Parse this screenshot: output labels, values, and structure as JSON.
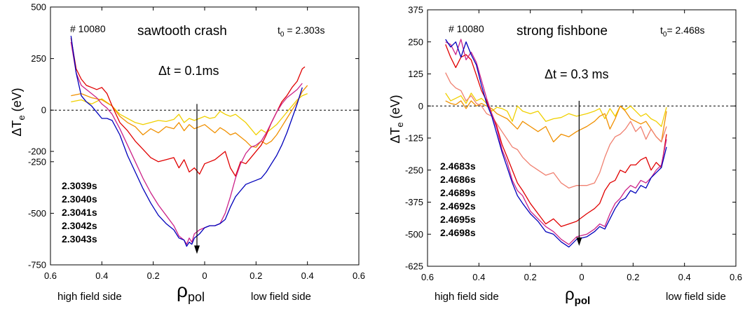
{
  "chart_data": [
    {
      "type": "line",
      "shot": "# 10080",
      "title": "sawtooth crash",
      "t0": "t",
      "t0_sub": "0",
      "t0_value": " = 2.303s",
      "dt_label": "Δt = 0.1ms",
      "ylabel": "ΔT",
      "ylabel_sub": "e",
      "ylabel_unit": " (eV)",
      "xlabel": "ρ",
      "xlabel_sub": "pol",
      "left_side_label": "high field side",
      "right_side_label": "low field side",
      "ylim": [
        -750,
        500
      ],
      "yticks": [
        500,
        250,
        0,
        -200,
        -250,
        -500,
        -750
      ],
      "ytick_labels": [
        "500",
        "250",
        "0",
        "-200",
        "-250",
        "-500",
        "-750"
      ],
      "xticks": [
        -0.6,
        -0.4,
        -0.2,
        0,
        0.2,
        0.4,
        0.6
      ],
      "xtick_labels": [
        "0.6",
        "0.4",
        "0.2",
        "0",
        "0.2",
        "0.4",
        "0.6"
      ],
      "xlim": [
        -0.6,
        0.6
      ],
      "arrow": {
        "x": -0.03,
        "y_from": 30,
        "y_to": -690
      },
      "series": [
        {
          "name": "2.3039s",
          "color": "#f0d000",
          "x": [
            -0.52,
            -0.48,
            -0.44,
            -0.4,
            -0.36,
            -0.33,
            -0.3,
            -0.27,
            -0.24,
            -0.21,
            -0.18,
            -0.15,
            -0.12,
            -0.1,
            -0.08,
            -0.06,
            -0.04,
            -0.02,
            0,
            0.02,
            0.04,
            0.06,
            0.08,
            0.1,
            0.12,
            0.14,
            0.16,
            0.18,
            0.2,
            0.22,
            0.24,
            0.26,
            0.28,
            0.3,
            0.32,
            0.34,
            0.36,
            0.38,
            0.4
          ],
          "y": [
            40,
            50,
            30,
            55,
            20,
            -20,
            -40,
            -60,
            -70,
            -60,
            -50,
            -55,
            -45,
            -20,
            -60,
            -40,
            -50,
            -40,
            -30,
            -40,
            -35,
            -5,
            -20,
            -30,
            -20,
            -40,
            -60,
            -90,
            -120,
            -95,
            -110,
            -90,
            -70,
            -40,
            -10,
            20,
            50,
            70,
            80
          ]
        },
        {
          "name": "2.3040s",
          "color": "#f09000",
          "x": [
            -0.52,
            -0.48,
            -0.44,
            -0.4,
            -0.36,
            -0.33,
            -0.3,
            -0.27,
            -0.24,
            -0.21,
            -0.18,
            -0.15,
            -0.12,
            -0.1,
            -0.08,
            -0.06,
            -0.04,
            -0.02,
            0,
            0.02,
            0.04,
            0.06,
            0.08,
            0.1,
            0.12,
            0.14,
            0.16,
            0.18,
            0.2,
            0.22,
            0.24,
            0.26,
            0.28,
            0.3,
            0.32,
            0.34,
            0.36,
            0.38,
            0.4
          ],
          "y": [
            70,
            80,
            60,
            50,
            20,
            -30,
            -60,
            -80,
            -120,
            -90,
            -110,
            -80,
            -90,
            -60,
            -100,
            -70,
            -90,
            -80,
            -70,
            -90,
            -110,
            -85,
            -100,
            -120,
            -110,
            -130,
            -150,
            -175,
            -180,
            -150,
            -165,
            -150,
            -120,
            -80,
            -40,
            0,
            40,
            90,
            120
          ]
        },
        {
          "name": "2.3041s",
          "color": "#e00000",
          "x": [
            -0.52,
            -0.5,
            -0.48,
            -0.46,
            -0.44,
            -0.42,
            -0.4,
            -0.38,
            -0.36,
            -0.33,
            -0.3,
            -0.27,
            -0.24,
            -0.21,
            -0.18,
            -0.15,
            -0.12,
            -0.1,
            -0.08,
            -0.06,
            -0.04,
            -0.02,
            0,
            0.02,
            0.04,
            0.06,
            0.08,
            0.1,
            0.12,
            0.14,
            0.16,
            0.18,
            0.2,
            0.22,
            0.24,
            0.26,
            0.28,
            0.3,
            0.32,
            0.34,
            0.36,
            0.38,
            0.39
          ],
          "y": [
            350,
            200,
            150,
            120,
            110,
            100,
            110,
            80,
            20,
            -60,
            -100,
            -150,
            -190,
            -230,
            -250,
            -240,
            -230,
            -280,
            -240,
            -300,
            -280,
            -310,
            -260,
            -250,
            -240,
            -220,
            -200,
            -280,
            -320,
            -250,
            -260,
            -230,
            -200,
            -170,
            -120,
            -60,
            -10,
            40,
            70,
            110,
            140,
            200,
            210
          ]
        },
        {
          "name": "2.3042s",
          "color": "#cc2288",
          "x": [
            -0.52,
            -0.5,
            -0.48,
            -0.46,
            -0.44,
            -0.42,
            -0.4,
            -0.38,
            -0.36,
            -0.33,
            -0.3,
            -0.27,
            -0.24,
            -0.21,
            -0.18,
            -0.15,
            -0.12,
            -0.1,
            -0.08,
            -0.07,
            -0.06,
            -0.05,
            -0.04,
            -0.02,
            0,
            0.02,
            0.04,
            0.06,
            0.08,
            0.1,
            0.12,
            0.14,
            0.16,
            0.18,
            0.2,
            0.22,
            0.24,
            0.26,
            0.28,
            0.3,
            0.32,
            0.34,
            0.36,
            0.38
          ],
          "y": [
            330,
            180,
            120,
            100,
            80,
            60,
            30,
            10,
            -20,
            -90,
            -170,
            -250,
            -330,
            -400,
            -460,
            -510,
            -560,
            -610,
            -630,
            -650,
            -620,
            -640,
            -600,
            -580,
            -570,
            -560,
            -560,
            -550,
            -500,
            -420,
            -330,
            -260,
            -210,
            -180,
            -170,
            -150,
            -110,
            -60,
            -10,
            30,
            60,
            80,
            100,
            130
          ]
        },
        {
          "name": "2.3043s",
          "color": "#0000bb",
          "x": [
            -0.52,
            -0.5,
            -0.48,
            -0.46,
            -0.44,
            -0.42,
            -0.4,
            -0.38,
            -0.36,
            -0.33,
            -0.3,
            -0.27,
            -0.24,
            -0.21,
            -0.18,
            -0.15,
            -0.12,
            -0.1,
            -0.08,
            -0.07,
            -0.06,
            -0.05,
            -0.04,
            -0.02,
            0,
            0.02,
            0.04,
            0.06,
            0.08,
            0.1,
            0.12,
            0.14,
            0.16,
            0.18,
            0.2,
            0.22,
            0.24,
            0.26,
            0.28,
            0.3,
            0.32,
            0.34,
            0.36,
            0.38
          ],
          "y": [
            360,
            180,
            70,
            40,
            20,
            -10,
            -40,
            -40,
            -50,
            -120,
            -220,
            -300,
            -380,
            -450,
            -510,
            -550,
            -580,
            -620,
            -630,
            -660,
            -640,
            -650,
            -620,
            -600,
            -570,
            -560,
            -560,
            -550,
            -530,
            -470,
            -420,
            -390,
            -360,
            -350,
            -340,
            -330,
            -300,
            -260,
            -220,
            -170,
            -110,
            -40,
            30,
            110
          ]
        }
      ]
    },
    {
      "type": "line",
      "shot": "# 10080",
      "title": "strong fishbone",
      "t0": "t",
      "t0_sub": "0",
      "t0_value": "= 2.468s",
      "dt_label": "Δt = 0.3 ms",
      "ylabel": "ΔT",
      "ylabel_sub": "e",
      "ylabel_unit": " (eV)",
      "xlabel": "ρ",
      "xlabel_sub": "pol",
      "left_side_label": "high field side",
      "right_side_label": "low field side",
      "ylim": [
        -625,
        375
      ],
      "yticks": [
        375,
        250,
        125,
        0,
        -125,
        -250,
        -375,
        -500,
        -625
      ],
      "ytick_labels": [
        "375",
        "250",
        "125",
        "0",
        "-125",
        "-250",
        "-375",
        "-500",
        "-625"
      ],
      "xticks": [
        -0.6,
        -0.4,
        -0.2,
        0,
        0.2,
        0.4,
        0.6
      ],
      "xtick_labels": [
        "0.6",
        "0.4",
        "0.2",
        "0",
        "0.2",
        "0.4",
        "0.6"
      ],
      "xlim": [
        -0.6,
        0.6
      ],
      "arrow": {
        "x": -0.01,
        "y_from": 20,
        "y_to": -540
      },
      "series": [
        {
          "name": "2.4683s",
          "color": "#f0d000",
          "x": [
            -0.53,
            -0.51,
            -0.49,
            -0.47,
            -0.45,
            -0.43,
            -0.41,
            -0.39,
            -0.37,
            -0.35,
            -0.33,
            -0.31,
            -0.29,
            -0.27,
            -0.25,
            -0.23,
            -0.2,
            -0.17,
            -0.14,
            -0.11,
            -0.08,
            -0.05,
            -0.02,
            0.02,
            0.05,
            0.07,
            0.09,
            0.11,
            0.13,
            0.15,
            0.17,
            0.19,
            0.21,
            0.23,
            0.25,
            0.27,
            0.29,
            0.31,
            0.33
          ],
          "y": [
            50,
            20,
            30,
            40,
            10,
            50,
            20,
            30,
            10,
            -20,
            -5,
            -10,
            -20,
            -60,
            0,
            -20,
            -30,
            -20,
            -60,
            -50,
            -45,
            -30,
            -40,
            -30,
            -20,
            -10,
            -50,
            -10,
            -40,
            0,
            -15,
            0,
            -20,
            -40,
            -30,
            -50,
            -60,
            -80,
            -5
          ]
        },
        {
          "name": "2.4686s",
          "color": "#f09000",
          "x": [
            -0.53,
            -0.51,
            -0.49,
            -0.47,
            -0.45,
            -0.43,
            -0.41,
            -0.39,
            -0.37,
            -0.35,
            -0.33,
            -0.31,
            -0.29,
            -0.27,
            -0.25,
            -0.23,
            -0.2,
            -0.17,
            -0.14,
            -0.11,
            -0.08,
            -0.05,
            -0.02,
            0.02,
            0.05,
            0.07,
            0.09,
            0.11,
            0.13,
            0.15,
            0.17,
            0.19,
            0.21,
            0.23,
            0.25,
            0.27,
            0.29,
            0.31,
            0.33
          ],
          "y": [
            20,
            10,
            5,
            20,
            -10,
            20,
            0,
            10,
            0,
            -10,
            -30,
            -40,
            -50,
            -70,
            -90,
            -60,
            -80,
            -100,
            -80,
            -140,
            -110,
            -120,
            -100,
            -80,
            -60,
            -40,
            -30,
            -90,
            -50,
            0,
            -20,
            -50,
            -60,
            -70,
            -60,
            -90,
            -120,
            -140,
            -20
          ]
        },
        {
          "name": "2.4689s",
          "color": "#f08070",
          "x": [
            -0.53,
            -0.51,
            -0.49,
            -0.47,
            -0.45,
            -0.43,
            -0.41,
            -0.39,
            -0.37,
            -0.35,
            -0.33,
            -0.31,
            -0.29,
            -0.27,
            -0.25,
            -0.23,
            -0.2,
            -0.17,
            -0.14,
            -0.11,
            -0.08,
            -0.05,
            -0.02,
            0.02,
            0.05,
            0.07,
            0.09,
            0.11,
            0.13,
            0.15,
            0.17,
            0.19,
            0.21,
            0.23,
            0.25,
            0.27,
            0.29,
            0.31,
            0.33
          ],
          "y": [
            130,
            90,
            70,
            60,
            20,
            40,
            10,
            0,
            -30,
            -40,
            -70,
            -100,
            -130,
            -160,
            -170,
            -200,
            -230,
            -250,
            -270,
            -260,
            -300,
            -320,
            -310,
            -310,
            -300,
            -260,
            -200,
            -150,
            -120,
            -110,
            -90,
            -60,
            -100,
            -80,
            -130,
            -90,
            -120,
            -140,
            -80
          ]
        },
        {
          "name": "2.4692s",
          "color": "#e00000",
          "x": [
            -0.53,
            -0.51,
            -0.49,
            -0.47,
            -0.45,
            -0.43,
            -0.41,
            -0.39,
            -0.37,
            -0.35,
            -0.33,
            -0.31,
            -0.29,
            -0.27,
            -0.25,
            -0.23,
            -0.2,
            -0.17,
            -0.14,
            -0.11,
            -0.08,
            -0.05,
            -0.02,
            0.02,
            0.05,
            0.07,
            0.09,
            0.11,
            0.13,
            0.15,
            0.17,
            0.19,
            0.21,
            0.23,
            0.25,
            0.27,
            0.29,
            0.31,
            0.33
          ],
          "y": [
            240,
            190,
            150,
            190,
            200,
            180,
            120,
            60,
            20,
            -30,
            -80,
            -150,
            -200,
            -250,
            -300,
            -330,
            -380,
            -420,
            -460,
            -440,
            -470,
            -460,
            -450,
            -420,
            -400,
            -380,
            -330,
            -300,
            -290,
            -250,
            -260,
            -230,
            -230,
            -210,
            -200,
            -250,
            -220,
            -240,
            -110
          ]
        },
        {
          "name": "2.4695s",
          "color": "#cc2288",
          "x": [
            -0.53,
            -0.51,
            -0.49,
            -0.47,
            -0.45,
            -0.43,
            -0.41,
            -0.39,
            -0.37,
            -0.35,
            -0.33,
            -0.31,
            -0.29,
            -0.27,
            -0.25,
            -0.23,
            -0.2,
            -0.17,
            -0.14,
            -0.11,
            -0.08,
            -0.05,
            -0.02,
            0.02,
            0.05,
            0.07,
            0.09,
            0.11,
            0.13,
            0.15,
            0.17,
            0.19,
            0.21,
            0.23,
            0.25,
            0.27,
            0.29,
            0.31,
            0.33
          ],
          "y": [
            250,
            240,
            200,
            260,
            180,
            210,
            170,
            100,
            30,
            -30,
            -90,
            -170,
            -220,
            -290,
            -330,
            -350,
            -410,
            -440,
            -470,
            -490,
            -520,
            -540,
            -510,
            -500,
            -480,
            -460,
            -470,
            -420,
            -380,
            -360,
            -330,
            -310,
            -320,
            -290,
            -300,
            -280,
            -250,
            -230,
            -130
          ]
        },
        {
          "name": "2.4698s",
          "color": "#0000bb",
          "x": [
            -0.53,
            -0.51,
            -0.49,
            -0.47,
            -0.45,
            -0.43,
            -0.41,
            -0.39,
            -0.37,
            -0.35,
            -0.33,
            -0.31,
            -0.29,
            -0.27,
            -0.25,
            -0.23,
            -0.2,
            -0.17,
            -0.14,
            -0.11,
            -0.08,
            -0.05,
            -0.02,
            0.02,
            0.05,
            0.07,
            0.09,
            0.11,
            0.13,
            0.15,
            0.17,
            0.19,
            0.21,
            0.23,
            0.25,
            0.27,
            0.29,
            0.31,
            0.33
          ],
          "y": [
            260,
            230,
            250,
            190,
            250,
            200,
            160,
            80,
            10,
            -40,
            -110,
            -180,
            -240,
            -300,
            -350,
            -380,
            -420,
            -450,
            -490,
            -500,
            -530,
            -550,
            -520,
            -510,
            -490,
            -470,
            -480,
            -440,
            -400,
            -370,
            -360,
            -330,
            -340,
            -310,
            -320,
            -280,
            -260,
            -240,
            -160
          ]
        }
      ]
    }
  ]
}
